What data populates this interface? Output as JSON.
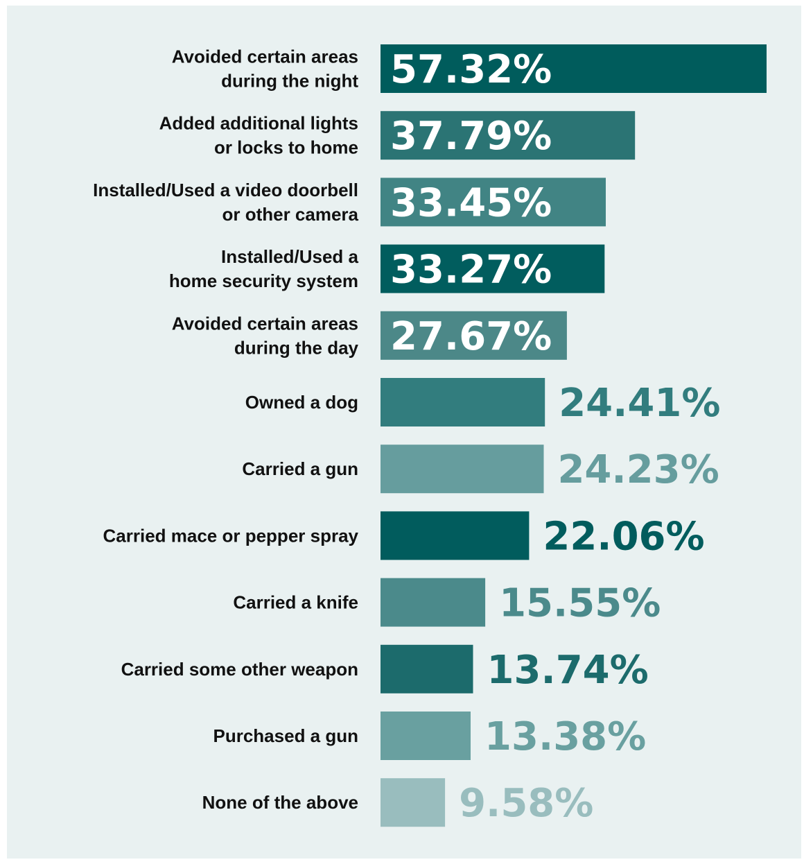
{
  "colors": {
    "background": "#e9f1f1",
    "label_text": "#111111",
    "inside_value_text": "#ffffff"
  },
  "chart_data": {
    "type": "bar",
    "orientation": "horizontal",
    "title": "",
    "xlabel": "",
    "ylabel": "",
    "unit": "%",
    "xlim": [
      0,
      57.32
    ],
    "grid": false,
    "legend": "none",
    "categories": [
      [
        "Avoided certain areas",
        "during the night"
      ],
      [
        "Added additional lights",
        "or locks to home"
      ],
      [
        "Installed/Used a video doorbell",
        "or other camera"
      ],
      [
        "Installed/Used a",
        "home security system"
      ],
      [
        "Avoided certain areas",
        "during the day"
      ],
      [
        "Owned a dog"
      ],
      [
        "Carried a gun"
      ],
      [
        "Carried mace or pepper spray"
      ],
      [
        "Carried a knife"
      ],
      [
        "Carried some other weapon"
      ],
      [
        "Purchased a gun"
      ],
      [
        "None of the above"
      ]
    ],
    "values": [
      57.32,
      37.79,
      33.45,
      33.27,
      27.67,
      24.41,
      24.23,
      22.06,
      15.55,
      13.74,
      13.38,
      9.58
    ],
    "value_labels": [
      "57.32%",
      "37.79%",
      "33.45%",
      "33.27%",
      "27.67%",
      "24.41%",
      "24.23%",
      "22.06%",
      "15.55%",
      "13.74%",
      "13.38%",
      "9.58%"
    ],
    "bar_colors": [
      "#005c5c",
      "#2b7474",
      "#418484",
      "#015d5e",
      "#4c8888",
      "#327d7e",
      "#669d9e",
      "#015c5d",
      "#4b8a8b",
      "#1c6b6c",
      "#69a0a0",
      "#99bdbe"
    ],
    "value_label_position": [
      "inside",
      "inside",
      "inside",
      "inside",
      "inside",
      "outside",
      "outside",
      "outside",
      "outside",
      "outside",
      "outside",
      "outside"
    ]
  }
}
